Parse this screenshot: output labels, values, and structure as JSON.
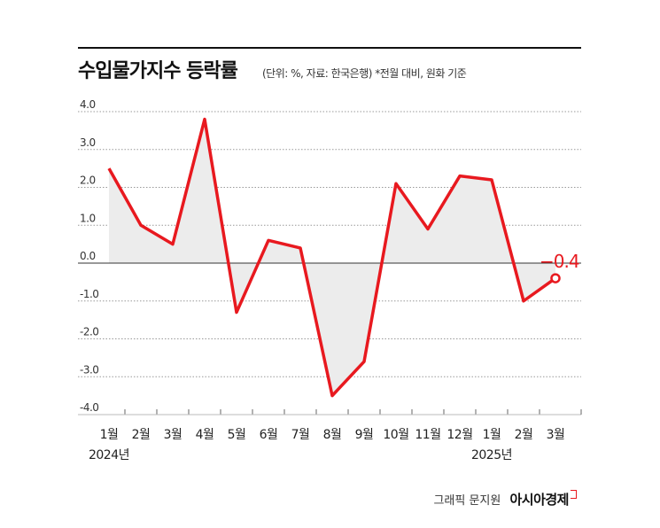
{
  "title": "수입물가지수 등락률",
  "subtitle": "(단위: %, 자료: 한국은행) *전월 대비, 원화 기준",
  "footer": {
    "credit": "그래픽 문지원",
    "brand": "아시아경제"
  },
  "colors": {
    "line": "#e8191f",
    "fill": "#ececec",
    "grid": "#999999",
    "zero": "#333333"
  },
  "chart_data": {
    "type": "area",
    "categories": [
      "1월",
      "2월",
      "3월",
      "4월",
      "5월",
      "6월",
      "7월",
      "8월",
      "9월",
      "10월",
      "11월",
      "12월",
      "1월",
      "2월",
      "3월"
    ],
    "year_labels": [
      {
        "index": 0,
        "label": "2024년"
      },
      {
        "index": 12,
        "label": "2025년"
      }
    ],
    "values": [
      2.5,
      1.0,
      0.5,
      3.8,
      -1.3,
      0.6,
      0.4,
      -3.5,
      -2.6,
      2.1,
      0.9,
      2.3,
      2.2,
      -1.0,
      -0.4
    ],
    "y_ticks": [
      "4.0",
      "3.0",
      "2.0",
      "1.0",
      "0.0",
      "-1.0",
      "-2.0",
      "-3.0",
      "-4.0"
    ],
    "ylim": [
      -4.0,
      4.0
    ],
    "grid": true,
    "callout": {
      "index": 14,
      "label": "−0.4"
    }
  }
}
